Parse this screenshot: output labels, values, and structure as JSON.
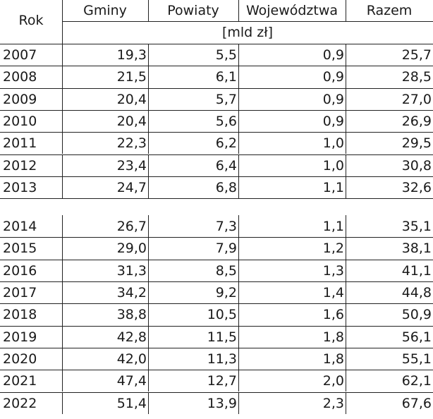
{
  "table": {
    "headers": {
      "rok": "Rok",
      "gminy": "Gminy",
      "powiaty": "Powiaty",
      "wojewodztwa": "Województwa",
      "razem": "Razem",
      "unit": "[mld zł]"
    },
    "rows": [
      {
        "rok": "2007",
        "gminy": "19,3",
        "powiaty": "5,5",
        "wojewodztwa": "0,9",
        "razem": "25,7"
      },
      {
        "rok": "2008",
        "gminy": "21,5",
        "powiaty": "6,1",
        "wojewodztwa": "0,9",
        "razem": "28,5"
      },
      {
        "rok": "2009",
        "gminy": "20,4",
        "powiaty": "5,7",
        "wojewodztwa": "0,9",
        "razem": "27,0"
      },
      {
        "rok": "2010",
        "gminy": "20,4",
        "powiaty": "5,6",
        "wojewodztwa": "0,9",
        "razem": "26,9"
      },
      {
        "rok": "2011",
        "gminy": "22,3",
        "powiaty": "6,2",
        "wojewodztwa": "1,0",
        "razem": "29,5"
      },
      {
        "rok": "2012",
        "gminy": "23,4",
        "powiaty": "6,4",
        "wojewodztwa": "1,0",
        "razem": "30,8"
      },
      {
        "rok": "2013",
        "gminy": "24,7",
        "powiaty": "6,8",
        "wojewodztwa": "1,1",
        "razem": "32,6"
      },
      {
        "rok": "2014",
        "gminy": "26,7",
        "powiaty": "7,3",
        "wojewodztwa": "1,1",
        "razem": "35,1"
      },
      {
        "rok": "2015",
        "gminy": "29,0",
        "powiaty": "7,9",
        "wojewodztwa": "1,2",
        "razem": "38,1"
      },
      {
        "rok": "2016",
        "gminy": "31,3",
        "powiaty": "8,5",
        "wojewodztwa": "1,3",
        "razem": "41,1"
      },
      {
        "rok": "2017",
        "gminy": "34,2",
        "powiaty": "9,2",
        "wojewodztwa": "1,4",
        "razem": "44,8"
      },
      {
        "rok": "2018",
        "gminy": "38,8",
        "powiaty": "10,5",
        "wojewodztwa": "1,6",
        "razem": "50,9"
      },
      {
        "rok": "2019",
        "gminy": "42,8",
        "powiaty": "11,5",
        "wojewodztwa": "1,8",
        "razem": "56,1"
      },
      {
        "rok": "2020",
        "gminy": "42,0",
        "powiaty": "11,3",
        "wojewodztwa": "1,8",
        "razem": "55,1"
      },
      {
        "rok": "2021",
        "gminy": "47,4",
        "powiaty": "12,7",
        "wojewodztwa": "2,0",
        "razem": "62,1"
      },
      {
        "rok": "2022",
        "gminy": "51,4",
        "powiaty": "13,9",
        "wojewodztwa": "2,3",
        "razem": "67,6"
      }
    ]
  }
}
